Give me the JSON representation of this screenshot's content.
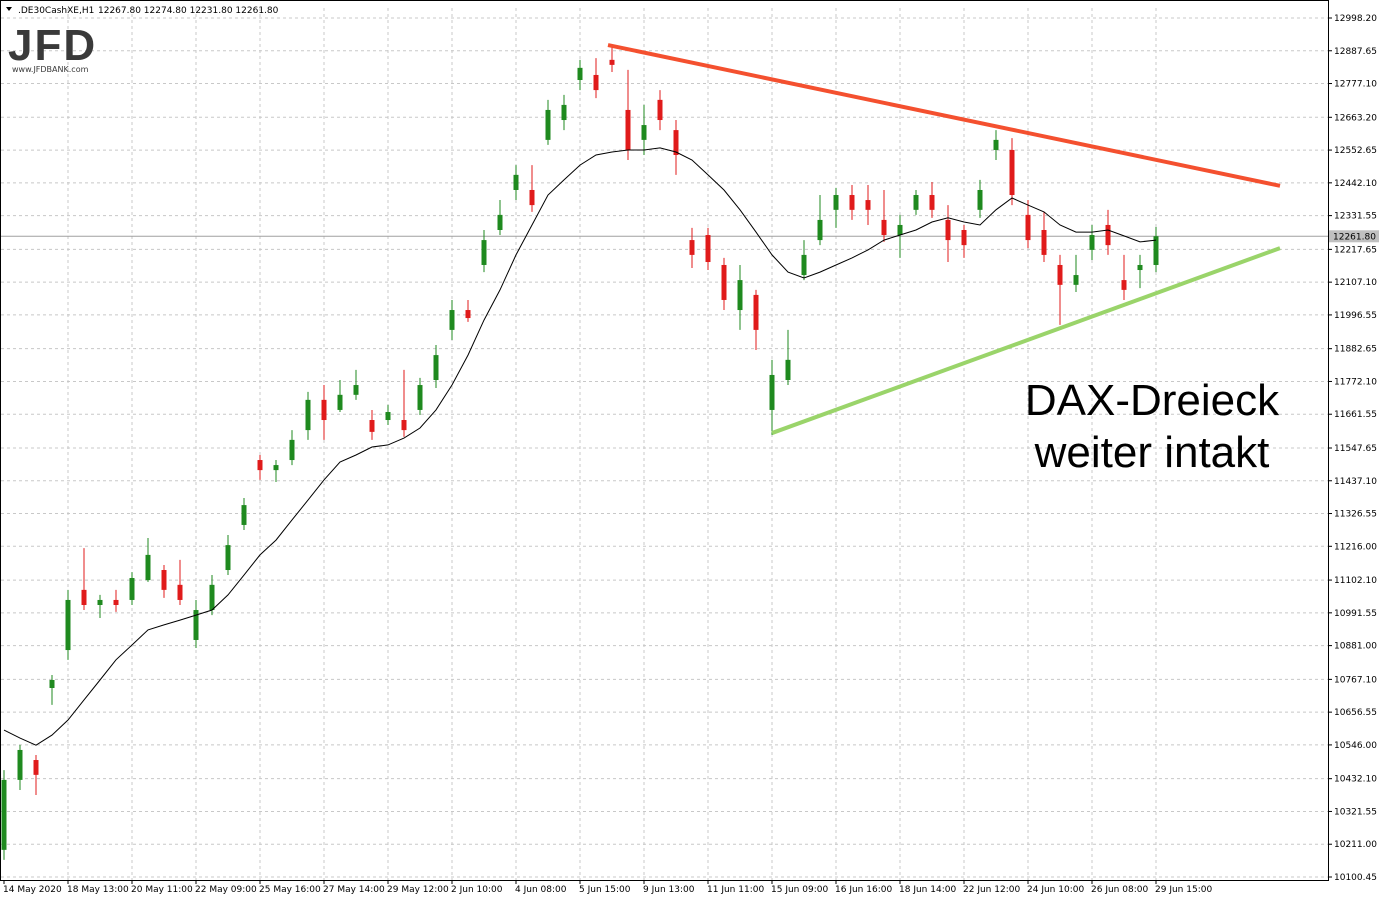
{
  "chart_data": {
    "type": "candlestick",
    "symbol_header": ".DE30CashXE,H1",
    "ohlc_header": "12267.80 12274.80 12231.80 12261.80",
    "logo": {
      "text": "JFD",
      "url": "www.JFDBANK.com"
    },
    "annotation": [
      "DAX-Dreieck",
      "weiter intakt"
    ],
    "categories": [
      "14 May 2020",
      null,
      null,
      null,
      "18 May 13:00",
      null,
      null,
      null,
      "20 May 11:00",
      null,
      null,
      null,
      "22 May 09:00",
      null,
      null,
      null,
      "25 May 16:00",
      null,
      null,
      null,
      "27 May 14:00",
      null,
      null,
      null,
      "29 May 12:00",
      null,
      null,
      null,
      "2 Jun 10:00",
      null,
      null,
      null,
      "4 Jun 08:00",
      null,
      null,
      null,
      "5 Jun 15:00",
      null,
      null,
      null,
      "9 Jun 13:00",
      null,
      null,
      null,
      "11 Jun 11:00",
      null,
      null,
      null,
      "15 Jun 09:00",
      null,
      null,
      null,
      "16 Jun 16:00",
      null,
      null,
      null,
      "18 Jun 14:00",
      null,
      null,
      null,
      "22 Jun 12:00",
      null,
      null,
      null,
      "24 Jun 10:00",
      null,
      null,
      null,
      "26 Jun 08:00",
      null,
      null,
      null,
      "29 Jun 15:00"
    ],
    "series": [
      {
        "up_color": "#1f8a1f",
        "down_color": "#e01b1b",
        "values": [
          [
            10192,
            10461,
            10158,
            10428
          ],
          [
            10428,
            10546,
            10394,
            10529
          ],
          [
            10495,
            10512,
            10377,
            10445
          ],
          [
            10738,
            10782,
            10681,
            10765
          ],
          [
            10866,
            11069,
            10833,
            11035
          ],
          [
            11069,
            11210,
            11001,
            11018
          ],
          [
            11018,
            11052,
            10974,
            11035
          ],
          [
            11035,
            11069,
            10995,
            11018
          ],
          [
            11035,
            11129,
            11018,
            11109
          ],
          [
            11102,
            11244,
            11096,
            11187
          ],
          [
            11136,
            11153,
            11042,
            11069
          ],
          [
            11086,
            11170,
            11018,
            11035
          ],
          [
            10900,
            11035,
            10873,
            11001
          ],
          [
            11001,
            11119,
            10984,
            11086
          ],
          [
            11136,
            11254,
            11119,
            11220
          ],
          [
            11288,
            11379,
            11271,
            11355
          ],
          [
            11507,
            11524,
            11440,
            11473
          ],
          [
            11473,
            11507,
            11433,
            11490
          ],
          [
            11507,
            11608,
            11490,
            11575
          ],
          [
            11608,
            11737,
            11575,
            11710
          ],
          [
            11710,
            11760,
            11575,
            11642
          ],
          [
            11676,
            11777,
            11669,
            11727
          ],
          [
            11727,
            11811,
            11710,
            11760
          ],
          [
            11642,
            11676,
            11575,
            11602
          ],
          [
            11642,
            11693,
            11625,
            11669
          ],
          [
            11642,
            11811,
            11585,
            11608
          ],
          [
            11676,
            11784,
            11659,
            11760
          ],
          [
            11777,
            11895,
            11750,
            11861
          ],
          [
            11946,
            12047,
            11912,
            12013
          ],
          [
            12013,
            12047,
            11973,
            11986
          ],
          [
            12165,
            12283,
            12141,
            12249
          ],
          [
            12283,
            12384,
            12266,
            12334
          ],
          [
            12418,
            12502,
            12384,
            12469
          ],
          [
            12418,
            12502,
            12344,
            12367
          ],
          [
            12587,
            12722,
            12570,
            12688
          ],
          [
            12654,
            12739,
            12620,
            12705
          ],
          [
            12789,
            12857,
            12755,
            12830
          ],
          [
            12806,
            12863,
            12728,
            12755
          ],
          [
            12857,
            12907,
            12816,
            12840
          ],
          [
            12688,
            12823,
            12519,
            12553
          ],
          [
            12587,
            12705,
            12536,
            12637
          ],
          [
            12722,
            12755,
            12620,
            12654
          ],
          [
            12620,
            12654,
            12469,
            12536
          ],
          [
            12249,
            12290,
            12155,
            12199
          ],
          [
            12266,
            12290,
            12148,
            12175
          ],
          [
            12165,
            12189,
            12013,
            12047
          ],
          [
            12013,
            12165,
            11946,
            12114
          ],
          [
            12064,
            12081,
            11878,
            11946
          ],
          [
            11676,
            11845,
            11592,
            11794
          ],
          [
            11777,
            11946,
            11760,
            11845
          ],
          [
            12131,
            12249,
            12114,
            12199
          ],
          [
            12249,
            12401,
            12232,
            12317
          ],
          [
            12351,
            12425,
            12290,
            12401
          ],
          [
            12401,
            12435,
            12317,
            12351
          ],
          [
            12384,
            12435,
            12300,
            12351
          ],
          [
            12317,
            12418,
            12243,
            12266
          ],
          [
            12266,
            12334,
            12189,
            12300
          ],
          [
            12351,
            12418,
            12334,
            12401
          ],
          [
            12401,
            12445,
            12324,
            12351
          ],
          [
            12317,
            12367,
            12175,
            12249
          ],
          [
            12283,
            12300,
            12189,
            12232
          ],
          [
            12351,
            12452,
            12324,
            12418
          ],
          [
            12553,
            12620,
            12519,
            12587
          ],
          [
            12553,
            12593,
            12367,
            12401
          ],
          [
            12334,
            12384,
            12222,
            12249
          ],
          [
            12283,
            12344,
            12175,
            12199
          ],
          [
            12165,
            12199,
            11963,
            12098
          ],
          [
            12098,
            12199,
            12074,
            12131
          ],
          [
            12216,
            12300,
            12182,
            12266
          ],
          [
            12300,
            12351,
            12199,
            12232
          ],
          [
            12114,
            12199,
            12047,
            12081
          ],
          [
            12148,
            12199,
            12087,
            12165
          ],
          [
            12165,
            12293,
            12141,
            12262
          ]
        ]
      }
    ],
    "moving_average": {
      "color": "#000000",
      "values": [
        10596,
        10569,
        10545,
        10579,
        10630,
        10698,
        10765,
        10833,
        10883,
        10934,
        10951,
        10967,
        10984,
        11001,
        11052,
        11119,
        11187,
        11237,
        11305,
        11372,
        11440,
        11500,
        11524,
        11551,
        11558,
        11581,
        11615,
        11676,
        11760,
        11861,
        11979,
        12081,
        12199,
        12300,
        12401,
        12452,
        12502,
        12536,
        12546,
        12553,
        12553,
        12560,
        12546,
        12519,
        12469,
        12418,
        12351,
        12276,
        12199,
        12141,
        12121,
        12141,
        12165,
        12189,
        12216,
        12249,
        12266,
        12283,
        12310,
        12324,
        12310,
        12300,
        12351,
        12391,
        12367,
        12344,
        12300,
        12276,
        12276,
        12283,
        12263,
        12243,
        12249
      ]
    },
    "trendlines": [
      {
        "color": "#f4502f",
        "start": [
          37.75,
          12907
        ],
        "end": [
          79.75,
          12432
        ]
      },
      {
        "color": "#9ad46a",
        "start": [
          48,
          11598
        ],
        "end": [
          79.75,
          12222
        ]
      }
    ],
    "last_price": {
      "value": 12261.8,
      "label": "12261.80"
    },
    "xlim": [
      -0.25,
      82.75
    ],
    "ylim": [
      10090.3,
      13031.9
    ],
    "yticks": [
      {
        "value": 12998.2,
        "label": "12998.20"
      },
      {
        "value": 12887.65,
        "label": "12887.65"
      },
      {
        "value": 12777.1,
        "label": "12777.10"
      },
      {
        "value": 12663.2,
        "label": "12663.20"
      },
      {
        "value": 12552.65,
        "label": "12552.65"
      },
      {
        "value": 12442.1,
        "label": "12442.10"
      },
      {
        "value": 12331.55,
        "label": "12331.55"
      },
      {
        "value": 12217.65,
        "label": "12217.65"
      },
      {
        "value": 12107.1,
        "label": "12107.10"
      },
      {
        "value": 11996.55,
        "label": "11996.55"
      },
      {
        "value": 11882.65,
        "label": "11882.65"
      },
      {
        "value": 11772.1,
        "label": "11772.10"
      },
      {
        "value": 11661.55,
        "label": "11661.55"
      },
      {
        "value": 11547.65,
        "label": "11547.65"
      },
      {
        "value": 11437.1,
        "label": "11437.10"
      },
      {
        "value": 11326.55,
        "label": "11326.55"
      },
      {
        "value": 11216,
        "label": "11216.00"
      },
      {
        "value": 11102.1,
        "label": "11102.10"
      },
      {
        "value": 10991.55,
        "label": "10991.55"
      },
      {
        "value": 10881,
        "label": "10881.00"
      },
      {
        "value": 10767.1,
        "label": "10767.10"
      },
      {
        "value": 10656.55,
        "label": "10656.55"
      },
      {
        "value": 10546,
        "label": "10546.00"
      },
      {
        "value": 10432.1,
        "label": "10432.10"
      },
      {
        "value": 10321.55,
        "label": "10321.55"
      },
      {
        "value": 10211,
        "label": "10211.00"
      },
      {
        "value": 10100.45,
        "label": "10100.45"
      }
    ],
    "grid": true
  }
}
